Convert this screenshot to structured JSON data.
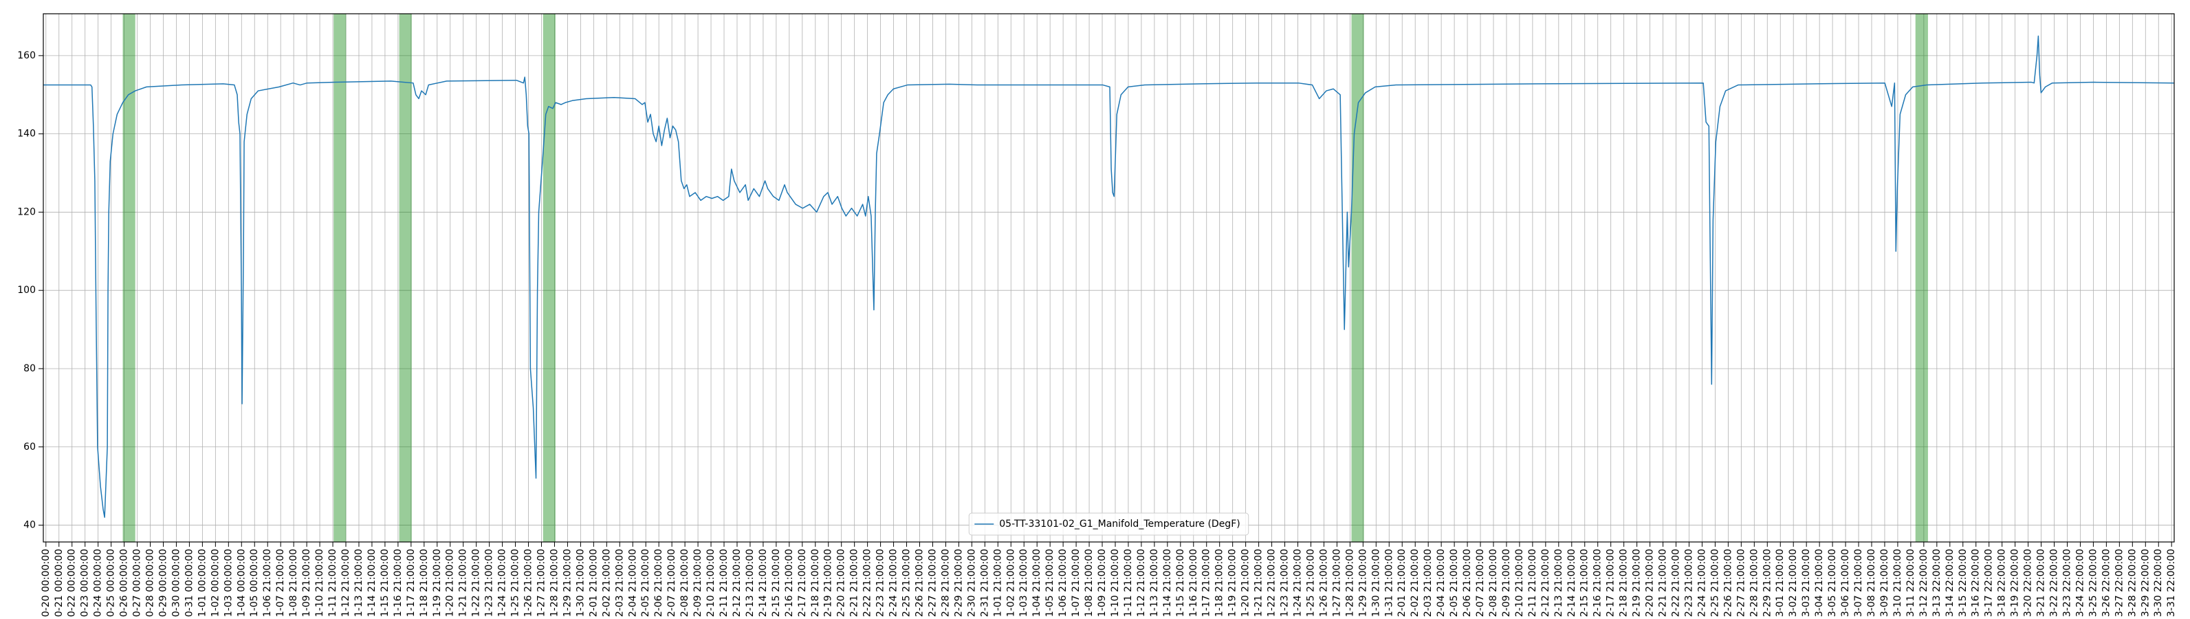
{
  "chart_data": {
    "type": "line",
    "series": [
      {
        "name": "05-TT-33101-02_G1_Manifold_Temperature (DegF)",
        "color": "#1f77b4",
        "x": [
          -0.2,
          3.43,
          3.53,
          3.64,
          3.75,
          3.85,
          3.96,
          4.18,
          4.39,
          4.5,
          4.71,
          4.76,
          4.82,
          4.93,
          5.14,
          5.46,
          5.89,
          6.32,
          6.85,
          7.71,
          10.39,
          13.6,
          14.45,
          14.67,
          14.78,
          14.88,
          14.99,
          15.04,
          15.15,
          15.2,
          15.42,
          15.74,
          16.27,
          17.88,
          18.95,
          19.49,
          20.02,
          22.16,
          26.45,
          28.16,
          28.37,
          28.59,
          28.8,
          29.12,
          29.34,
          30.73,
          36.08,
          36.62,
          36.72,
          36.83,
          36.94,
          37.04,
          37.15,
          37.37,
          37.58,
          37.69,
          37.79,
          38.01,
          38.12,
          38.33,
          38.54,
          38.87,
          39.08,
          39.51,
          39.83,
          40.36,
          41.43,
          43.58,
          45.18,
          45.72,
          45.93,
          46.15,
          46.36,
          46.57,
          46.79,
          47.0,
          47.22,
          47.43,
          47.64,
          47.86,
          48.07,
          48.29,
          48.5,
          48.72,
          48.93,
          49.14,
          49.36,
          49.79,
          50.21,
          50.64,
          51.07,
          51.5,
          51.93,
          52.36,
          52.57,
          52.78,
          53.21,
          53.64,
          53.85,
          54.28,
          54.71,
          55.14,
          55.35,
          55.78,
          56.21,
          56.64,
          56.85,
          57.49,
          58.03,
          58.57,
          59.1,
          59.64,
          59.96,
          60.28,
          60.71,
          61.03,
          61.35,
          61.78,
          62.21,
          62.63,
          62.85,
          63.06,
          63.28,
          63.49,
          63.6,
          63.7,
          63.92,
          64.24,
          64.56,
          64.99,
          66.06,
          69.27,
          71.41,
          75.7,
          81.05,
          81.58,
          81.69,
          81.8,
          81.91,
          82.12,
          82.44,
          82.98,
          84.26,
          88.54,
          92.83,
          96.04,
          97.11,
          97.64,
          98.18,
          98.72,
          99.25,
          99.57,
          99.79,
          99.89,
          100.11,
          100.32,
          100.64,
          101.18,
          101.93,
          103.53,
          114.24,
          127.09,
          127.3,
          127.52,
          127.62,
          127.73,
          127.84,
          128.05,
          128.37,
          128.8,
          129.76,
          135.65,
          141.01,
          141.54,
          141.76,
          141.86,
          141.97,
          142.18,
          142.61,
          143.15,
          144.22,
          148.5,
          152.25,
          152.46,
          152.68,
          152.78,
          152.89,
          152.99,
          153.32,
          153.85,
          157.07,
          163.17
        ],
        "values": [
          152.5,
          152.5,
          152,
          142,
          128,
          93,
          60,
          50,
          44,
          42,
          60,
          100,
          120,
          133,
          140,
          145,
          148,
          150,
          151,
          152,
          152.5,
          152.8,
          152.5,
          150,
          143,
          140,
          100,
          71,
          110,
          138,
          145,
          149,
          151,
          152,
          153,
          152.5,
          153,
          153.2,
          153.5,
          153,
          150,
          149,
          151,
          150,
          152.5,
          153.5,
          153.7,
          153,
          154.5,
          150,
          142,
          140,
          80,
          70,
          52,
          100,
          120,
          130,
          135,
          145,
          147,
          146.5,
          148,
          147.5,
          148,
          148.5,
          149,
          149.3,
          149,
          147.5,
          148,
          143,
          145,
          140,
          138,
          142,
          137,
          141,
          144,
          139,
          142,
          141,
          138,
          128,
          126,
          127,
          124,
          125,
          123,
          124,
          123.5,
          124,
          123,
          124,
          131,
          128,
          125,
          127,
          123,
          126,
          124,
          128,
          126,
          124,
          123,
          127,
          125,
          122,
          121,
          122,
          120,
          124,
          125,
          122,
          124,
          121,
          119,
          121,
          119,
          122,
          119,
          124,
          119,
          95,
          120,
          135,
          140,
          148,
          150,
          151.5,
          152.5,
          152.7,
          152.5,
          152.5,
          152.5,
          152,
          131,
          125,
          124,
          145,
          150,
          152,
          152.5,
          152.8,
          153,
          153,
          152.5,
          149,
          151,
          151.5,
          150,
          90,
          120,
          106,
          120,
          140,
          148,
          150.5,
          152,
          152.5,
          152.8,
          153,
          143,
          142,
          110,
          76,
          118,
          138,
          147,
          151,
          152.5,
          152.8,
          153,
          147,
          153,
          110,
          126,
          145,
          150,
          152,
          152.5,
          153,
          153.2,
          153,
          160,
          165,
          155,
          150.5,
          152,
          153,
          153.2,
          153
        ]
      }
    ],
    "spans": [
      [
        5.89,
        6.85
      ],
      [
        22.06,
        23.02
      ],
      [
        27.09,
        28.05
      ],
      [
        38.12,
        39.08
      ],
      [
        100.11,
        101.07
      ],
      [
        143.36,
        144.32
      ]
    ],
    "span_color": "#008000",
    "xlim": [
      -0.2,
      163.2
    ],
    "ylim": [
      35.7,
      170.7
    ],
    "yticks": [
      40,
      60,
      80,
      100,
      120,
      140,
      160
    ],
    "xticks": [
      {
        "value": 0,
        "label": "0-20 00:00:00"
      },
      {
        "value": 1,
        "label": "0-21 00:00:00"
      },
      {
        "value": 2,
        "label": "0-22 00:00:00"
      },
      {
        "value": 3,
        "label": "0-23 00:00:00"
      },
      {
        "value": 4,
        "label": "0-24 00:00:00"
      },
      {
        "value": 5,
        "label": "0-25 00:00:00"
      },
      {
        "value": 6,
        "label": "0-26 00:00:00"
      },
      {
        "value": 7,
        "label": "0-27 00:00:00"
      },
      {
        "value": 8,
        "label": "0-28 00:00:00"
      },
      {
        "value": 9,
        "label": "0-29 00:00:00"
      },
      {
        "value": 10,
        "label": "0-30 00:00:00"
      },
      {
        "value": 11,
        "label": "0-31 00:00:00"
      },
      {
        "value": 12,
        "label": "1-01 00:00:00"
      },
      {
        "value": 13,
        "label": "1-02 00:00:00"
      },
      {
        "value": 14,
        "label": "1-03 00:00:00"
      },
      {
        "value": 15,
        "label": "1-04 00:00:00"
      },
      {
        "value": 16,
        "label": "1-05 00:00:00"
      },
      {
        "value": 17,
        "label": "1-06 21:00:00"
      },
      {
        "value": 18,
        "label": "1-07 21:00:00"
      },
      {
        "value": 19,
        "label": "1-08 21:00:00"
      },
      {
        "value": 20,
        "label": "1-09 21:00:00"
      },
      {
        "value": 21,
        "label": "1-10 21:00:00"
      },
      {
        "value": 22,
        "label": "1-11 21:00:00"
      },
      {
        "value": 23,
        "label": "1-12 21:00:00"
      },
      {
        "value": 24,
        "label": "1-13 21:00:00"
      },
      {
        "value": 25,
        "label": "1-14 21:00:00"
      },
      {
        "value": 26,
        "label": "1-15 21:00:00"
      },
      {
        "value": 27,
        "label": "1-16 21:00:00"
      },
      {
        "value": 28,
        "label": "1-17 21:00:00"
      },
      {
        "value": 29,
        "label": "1-18 21:00:00"
      },
      {
        "value": 30,
        "label": "1-19 21:00:00"
      },
      {
        "value": 31,
        "label": "1-20 21:00:00"
      },
      {
        "value": 32,
        "label": "1-21 21:00:00"
      },
      {
        "value": 33,
        "label": "1-22 21:00:00"
      },
      {
        "value": 34,
        "label": "1-23 21:00:00"
      },
      {
        "value": 35,
        "label": "1-24 21:00:00"
      },
      {
        "value": 36,
        "label": "1-25 21:00:00"
      },
      {
        "value": 37,
        "label": "1-26 21:00:00"
      },
      {
        "value": 38,
        "label": "1-27 21:00:00"
      },
      {
        "value": 39,
        "label": "1-28 21:00:00"
      },
      {
        "value": 40,
        "label": "1-29 21:00:00"
      },
      {
        "value": 41,
        "label": "1-30 21:00:00"
      },
      {
        "value": 42,
        "label": "2-01 21:00:00"
      },
      {
        "value": 43,
        "label": "2-02 21:00:00"
      },
      {
        "value": 44,
        "label": "2-03 21:00:00"
      },
      {
        "value": 45,
        "label": "2-04 21:00:00"
      },
      {
        "value": 46,
        "label": "2-05 21:00:00"
      },
      {
        "value": 47,
        "label": "2-06 21:00:00"
      },
      {
        "value": 48,
        "label": "2-07 21:00:00"
      },
      {
        "value": 49,
        "label": "2-08 21:00:00"
      },
      {
        "value": 50,
        "label": "2-09 21:00:00"
      },
      {
        "value": 51,
        "label": "2-10 21:00:00"
      },
      {
        "value": 52,
        "label": "2-11 21:00:00"
      },
      {
        "value": 53,
        "label": "2-12 21:00:00"
      },
      {
        "value": 54,
        "label": "2-13 21:00:00"
      },
      {
        "value": 55,
        "label": "2-14 21:00:00"
      },
      {
        "value": 56,
        "label": "2-15 21:00:00"
      },
      {
        "value": 57,
        "label": "2-16 21:00:00"
      },
      {
        "value": 58,
        "label": "2-17 21:00:00"
      },
      {
        "value": 59,
        "label": "2-18 21:00:00"
      },
      {
        "value": 60,
        "label": "2-19 21:00:00"
      },
      {
        "value": 61,
        "label": "2-20 21:00:00"
      },
      {
        "value": 62,
        "label": "2-21 21:00:00"
      },
      {
        "value": 63,
        "label": "2-22 21:00:00"
      },
      {
        "value": 64,
        "label": "2-23 21:00:00"
      },
      {
        "value": 65,
        "label": "2-24 21:00:00"
      },
      {
        "value": 66,
        "label": "2-25 21:00:00"
      },
      {
        "value": 67,
        "label": "2-26 21:00:00"
      },
      {
        "value": 68,
        "label": "2-27 21:00:00"
      },
      {
        "value": 69,
        "label": "2-28 21:00:00"
      },
      {
        "value": 70,
        "label": "2-29 21:00:00"
      },
      {
        "value": 71,
        "label": "2-30 21:00:00"
      },
      {
        "value": 72,
        "label": "2-31 21:00:00"
      },
      {
        "value": 73,
        "label": "1-01 21:00:00"
      },
      {
        "value": 74,
        "label": "1-02 21:00:00"
      },
      {
        "value": 75,
        "label": "1-03 21:00:00"
      },
      {
        "value": 76,
        "label": "1-04 21:00:00"
      },
      {
        "value": 77,
        "label": "1-05 21:00:00"
      },
      {
        "value": 78,
        "label": "1-06 21:00:00"
      },
      {
        "value": 79,
        "label": "1-07 21:00:00"
      },
      {
        "value": 80,
        "label": "1-08 21:00:00"
      },
      {
        "value": 81,
        "label": "1-09 21:00:00"
      },
      {
        "value": 82,
        "label": "1-10 21:00:00"
      },
      {
        "value": 83,
        "label": "1-11 21:00:00"
      },
      {
        "value": 84,
        "label": "1-12 21:00:00"
      },
      {
        "value": 85,
        "label": "1-13 21:00:00"
      },
      {
        "value": 86,
        "label": "1-14 21:00:00"
      },
      {
        "value": 87,
        "label": "1-15 21:00:00"
      },
      {
        "value": 88,
        "label": "1-16 21:00:00"
      },
      {
        "value": 89,
        "label": "1-17 21:00:00"
      },
      {
        "value": 90,
        "label": "1-18 21:00:00"
      },
      {
        "value": 91,
        "label": "1-19 21:00:00"
      },
      {
        "value": 92,
        "label": "1-20 21:00:00"
      },
      {
        "value": 93,
        "label": "1-21 21:00:00"
      },
      {
        "value": 94,
        "label": "1-22 21:00:00"
      },
      {
        "value": 95,
        "label": "1-23 21:00:00"
      },
      {
        "value": 96,
        "label": "1-24 21:00:00"
      },
      {
        "value": 97,
        "label": "1-25 21:00:00"
      },
      {
        "value": 98,
        "label": "1-26 21:00:00"
      },
      {
        "value": 99,
        "label": "1-27 21:00:00"
      },
      {
        "value": 100,
        "label": "1-28 21:00:00"
      },
      {
        "value": 101,
        "label": "1-29 21:00:00"
      },
      {
        "value": 102,
        "label": "1-30 21:00:00"
      },
      {
        "value": 103,
        "label": "1-31 21:00:00"
      },
      {
        "value": 104,
        "label": "2-01 21:00:00"
      },
      {
        "value": 105,
        "label": "2-02 21:00:00"
      },
      {
        "value": 106,
        "label": "2-03 21:00:00"
      },
      {
        "value": 107,
        "label": "2-04 21:00:00"
      },
      {
        "value": 108,
        "label": "2-05 21:00:00"
      },
      {
        "value": 109,
        "label": "2-06 21:00:00"
      },
      {
        "value": 110,
        "label": "2-07 21:00:00"
      },
      {
        "value": 111,
        "label": "2-08 21:00:00"
      },
      {
        "value": 112,
        "label": "2-09 21:00:00"
      },
      {
        "value": 113,
        "label": "2-10 21:00:00"
      },
      {
        "value": 114,
        "label": "2-11 21:00:00"
      },
      {
        "value": 115,
        "label": "2-12 21:00:00"
      },
      {
        "value": 116,
        "label": "2-13 21:00:00"
      },
      {
        "value": 117,
        "label": "2-14 21:00:00"
      },
      {
        "value": 118,
        "label": "2-15 21:00:00"
      },
      {
        "value": 119,
        "label": "2-16 21:00:00"
      },
      {
        "value": 120,
        "label": "2-17 21:00:00"
      },
      {
        "value": 121,
        "label": "2-18 21:00:00"
      },
      {
        "value": 122,
        "label": "2-19 21:00:00"
      },
      {
        "value": 123,
        "label": "2-20 21:00:00"
      },
      {
        "value": 124,
        "label": "2-21 21:00:00"
      },
      {
        "value": 125,
        "label": "2-22 21:00:00"
      },
      {
        "value": 126,
        "label": "2-23 21:00:00"
      },
      {
        "value": 127,
        "label": "2-24 21:00:00"
      },
      {
        "value": 128,
        "label": "2-25 21:00:00"
      },
      {
        "value": 129,
        "label": "2-26 21:00:00"
      },
      {
        "value": 130,
        "label": "2-27 21:00:00"
      },
      {
        "value": 131,
        "label": "2-28 21:00:00"
      },
      {
        "value": 132,
        "label": "2-29 21:00:00"
      },
      {
        "value": 133,
        "label": "3-01 21:00:00"
      },
      {
        "value": 134,
        "label": "3-02 21:00:00"
      },
      {
        "value": 135,
        "label": "3-03 21:00:00"
      },
      {
        "value": 136,
        "label": "3-04 21:00:00"
      },
      {
        "value": 137,
        "label": "3-05 21:00:00"
      },
      {
        "value": 138,
        "label": "3-06 21:00:00"
      },
      {
        "value": 139,
        "label": "3-07 21:00:00"
      },
      {
        "value": 140,
        "label": "3-08 21:00:00"
      },
      {
        "value": 141,
        "label": "3-09 21:00:00"
      },
      {
        "value": 142,
        "label": "3-10 21:00:00"
      },
      {
        "value": 143,
        "label": "3-11 22:00:00"
      },
      {
        "value": 144,
        "label": "3-12 22:00:00"
      },
      {
        "value": 145,
        "label": "3-13 22:00:00"
      },
      {
        "value": 146,
        "label": "3-14 22:00:00"
      },
      {
        "value": 147,
        "label": "3-15 22:00:00"
      },
      {
        "value": 148,
        "label": "3-16 22:00:00"
      },
      {
        "value": 149,
        "label": "3-17 22:00:00"
      },
      {
        "value": 150,
        "label": "3-18 22:00:00"
      },
      {
        "value": 151,
        "label": "3-19 22:00:00"
      },
      {
        "value": 152,
        "label": "3-20 22:00:00"
      },
      {
        "value": 153,
        "label": "3-21 22:00:00"
      },
      {
        "value": 154,
        "label": "3-22 22:00:00"
      },
      {
        "value": 155,
        "label": "3-23 22:00:00"
      },
      {
        "value": 156,
        "label": "3-24 22:00:00"
      },
      {
        "value": 157,
        "label": "3-25 22:00:00"
      },
      {
        "value": 158,
        "label": "3-26 22:00:00"
      },
      {
        "value": 159,
        "label": "3-27 22:00:00"
      },
      {
        "value": 160,
        "label": "3-28 22:00:00"
      },
      {
        "value": 161,
        "label": "3-29 22:00:00"
      },
      {
        "value": 162,
        "label": "3-30 22:00:00"
      },
      {
        "value": 163,
        "label": "3-31 22:00:00"
      }
    ],
    "grid": true,
    "legend": "lower center"
  }
}
